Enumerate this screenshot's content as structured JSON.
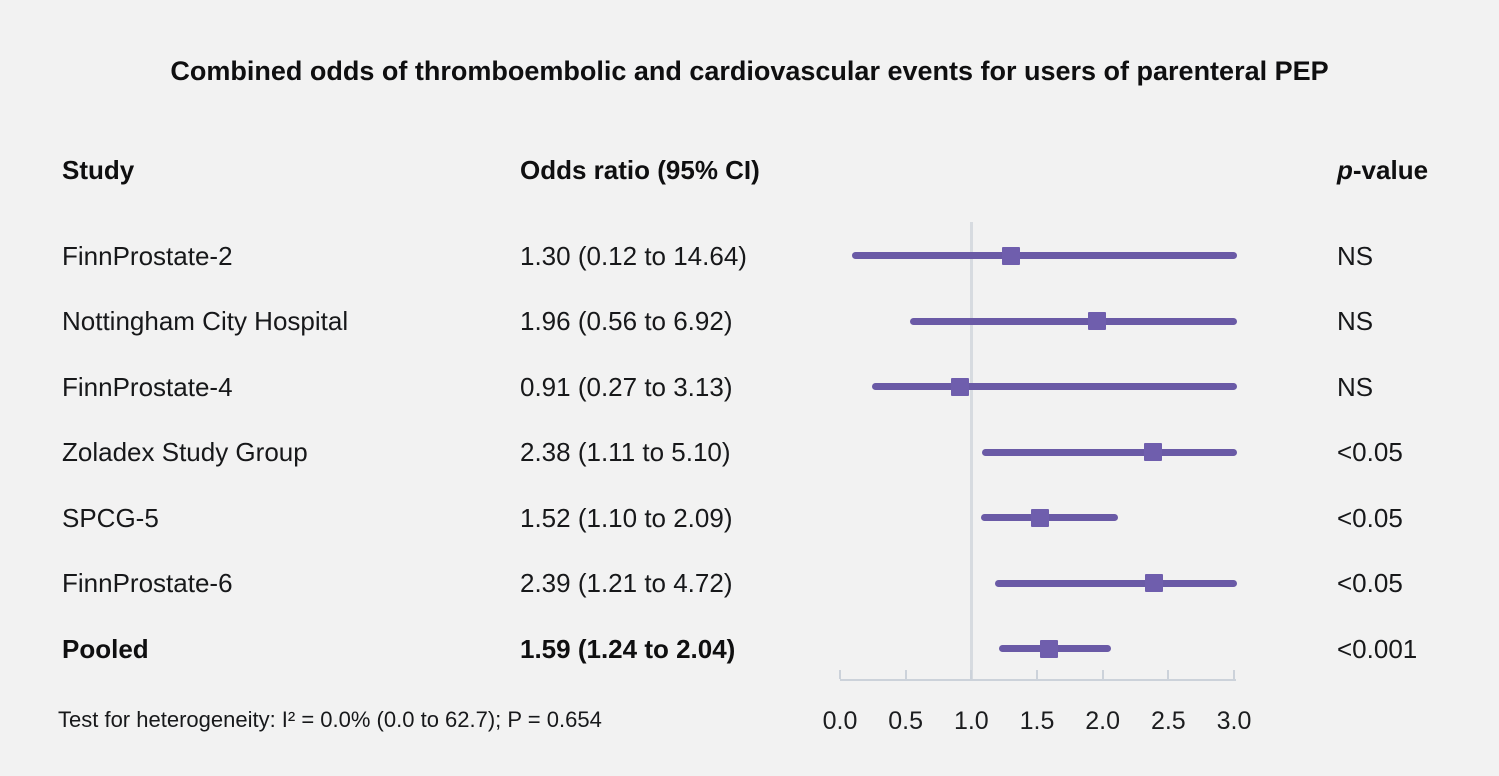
{
  "title": "Combined odds of thromboembolic and cardiovascular events for users of parenteral PEP",
  "header": {
    "study": "Study",
    "odds_ratio": "Odds ratio (95% CI)",
    "p_prefix": "p",
    "p_suffix": "-value"
  },
  "footnote": "Test for heterogeneity: I² = 0.0% (0.0 to 62.7); P = 0.654",
  "colors": {
    "background": "#f2f2f2",
    "ci_line": "#6a5aa6",
    "marker": "#6f5ead",
    "axis": "#ccd2da",
    "reference_line": "#d7dbe0",
    "text": "#17181a"
  },
  "chart_data": {
    "type": "forest",
    "title": "Combined odds of thromboembolic and cardiovascular events for users of parenteral PEP",
    "x_axis": {
      "ticks": [
        "0.0",
        "0.5",
        "1.0",
        "1.5",
        "2.0",
        "2.5",
        "3.0"
      ],
      "xlim": [
        0,
        3
      ],
      "reference_line": 1.0
    },
    "rows": [
      {
        "study": "FinnProstate-2",
        "or_text": "1.30 (0.12 to 14.64)",
        "estimate": 1.3,
        "lower": 0.12,
        "upper": 14.64,
        "p": "NS",
        "bold": false
      },
      {
        "study": "Nottingham City Hospital",
        "or_text": "1.96 (0.56 to 6.92)",
        "estimate": 1.96,
        "lower": 0.56,
        "upper": 6.92,
        "p": "NS",
        "bold": false
      },
      {
        "study": "FinnProstate-4",
        "or_text": "0.91 (0.27 to 3.13)",
        "estimate": 0.91,
        "lower": 0.27,
        "upper": 3.13,
        "p": "NS",
        "bold": false
      },
      {
        "study": "Zoladex Study Group",
        "or_text": "2.38 (1.11 to 5.10)",
        "estimate": 2.38,
        "lower": 1.11,
        "upper": 5.1,
        "p": "<0.05",
        "bold": false
      },
      {
        "study": "SPCG-5",
        "or_text": "1.52 (1.10 to 2.09)",
        "estimate": 1.52,
        "lower": 1.1,
        "upper": 2.09,
        "p": "<0.05",
        "bold": false
      },
      {
        "study": "FinnProstate-6",
        "or_text": "2.39 (1.21 to 4.72)",
        "estimate": 2.39,
        "lower": 1.21,
        "upper": 4.72,
        "p": "<0.05",
        "bold": false
      },
      {
        "study": "Pooled",
        "or_text": "1.59 (1.24 to 2.04)",
        "estimate": 1.59,
        "lower": 1.24,
        "upper": 2.04,
        "p": "<0.001",
        "bold": true
      }
    ],
    "footnote": "Test for heterogeneity: I² = 0.0% (0.0 to 62.7); P = 0.654"
  }
}
